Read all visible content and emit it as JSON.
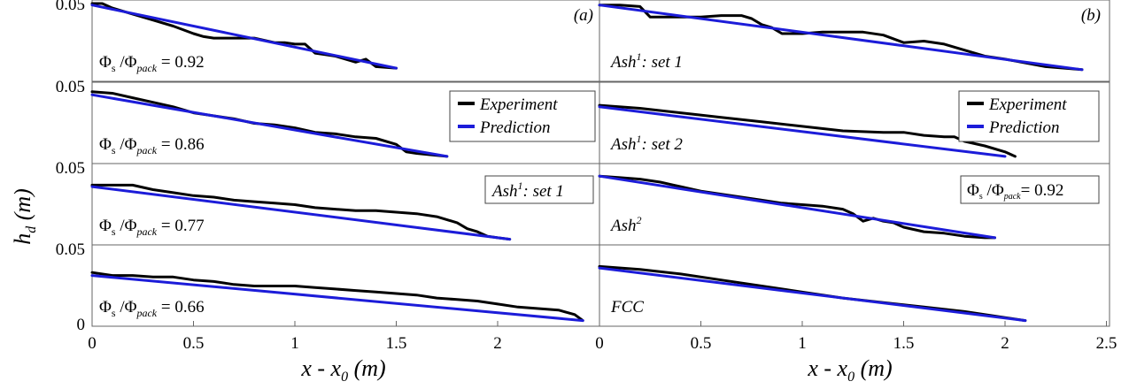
{
  "figure": {
    "ylabel": "h",
    "ylabel_sub": "d",
    "ylabel_unit": " (m)",
    "colors": {
      "experiment": "#000000",
      "prediction": "#1c1cd9",
      "frame": "#666666",
      "text": "#000000"
    }
  },
  "columns": [
    {
      "tag": "(a)",
      "xlabel": "x - x",
      "xlabel_sub": "0",
      "xlabel_unit": " (m)",
      "xlim": [
        0,
        2.5
      ],
      "xticks": [
        0,
        0.5,
        1,
        1.5,
        2
      ],
      "xtick_labels": [
        "0",
        "0.5",
        "1",
        "1.5",
        "2"
      ]
    },
    {
      "tag": "(b)",
      "xlabel": "x - x",
      "xlabel_sub": "0",
      "xlabel_unit": " (m)",
      "xlim": [
        0,
        2.5
      ],
      "xticks": [
        0,
        0.5,
        1,
        1.5,
        2,
        2.5
      ],
      "xtick_labels": [
        "0",
        "0.5",
        "1",
        "1.5",
        "2",
        "2.5"
      ]
    }
  ],
  "legend": {
    "experiment": "Experiment",
    "prediction": "Prediction"
  },
  "boxes": {
    "a_ash": {
      "main": "Ash",
      "sup": "1",
      "rest": ": set 1"
    },
    "b_phi": {
      "phi": "Φ",
      "s": "s",
      "slash": " /Φ",
      "pack": "pack",
      "eq": "= 0.92"
    }
  },
  "chart_data": [
    {
      "type": "line",
      "column": "a",
      "row": 0,
      "ylim": [
        0,
        0.05
      ],
      "yticks": [
        0.05
      ],
      "ytick_labels": [
        "0.05"
      ],
      "label": {
        "kind": "phi",
        "phi": "Φ",
        "s": "s",
        "slash": " /Φ",
        "pack": "pack",
        "eq": " = 0.92"
      },
      "series": [
        {
          "name": "Experiment",
          "x": [
            0,
            0.05,
            0.1,
            0.2,
            0.3,
            0.4,
            0.5,
            0.55,
            0.6,
            0.7,
            0.8,
            0.9,
            0.95,
            1.0,
            1.05,
            1.1,
            1.15,
            1.2,
            1.25,
            1.3,
            1.35,
            1.4,
            1.5
          ],
          "y": [
            0.05,
            0.05,
            0.047,
            0.043,
            0.039,
            0.035,
            0.03,
            0.028,
            0.027,
            0.027,
            0.027,
            0.024,
            0.024,
            0.023,
            0.023,
            0.017,
            0.016,
            0.015,
            0.013,
            0.011,
            0.013,
            0.008,
            0.007
          ]
        },
        {
          "name": "Prediction",
          "x": [
            0,
            1.5
          ],
          "y": [
            0.049,
            0.007
          ]
        }
      ]
    },
    {
      "type": "line",
      "column": "a",
      "row": 1,
      "ylim": [
        0,
        0.05
      ],
      "yticks": [
        0.05
      ],
      "ytick_labels": [
        "0.05"
      ],
      "label": {
        "kind": "phi",
        "phi": "Φ",
        "s": "s",
        "slash": " /Φ",
        "pack": "pack",
        "eq": " = 0.86"
      },
      "series": [
        {
          "name": "Experiment",
          "x": [
            0,
            0.1,
            0.2,
            0.3,
            0.4,
            0.5,
            0.6,
            0.7,
            0.8,
            0.9,
            1.0,
            1.1,
            1.2,
            1.3,
            1.4,
            1.5,
            1.55,
            1.6,
            1.75
          ],
          "y": [
            0.046,
            0.045,
            0.042,
            0.039,
            0.036,
            0.032,
            0.03,
            0.028,
            0.025,
            0.024,
            0.022,
            0.019,
            0.018,
            0.016,
            0.015,
            0.011,
            0.006,
            0.005,
            0.003
          ]
        },
        {
          "name": "Prediction",
          "x": [
            0,
            1.75
          ],
          "y": [
            0.044,
            0.003
          ]
        }
      ]
    },
    {
      "type": "line",
      "column": "a",
      "row": 2,
      "ylim": [
        0,
        0.05
      ],
      "yticks": [
        0.05
      ],
      "ytick_labels": [
        "0.05"
      ],
      "label": {
        "kind": "phi",
        "phi": "Φ",
        "s": "s",
        "slash": " /Φ",
        "pack": "pack",
        "eq": " = 0.77"
      },
      "series": [
        {
          "name": "Experiment",
          "x": [
            0,
            0.2,
            0.3,
            0.4,
            0.5,
            0.6,
            0.7,
            0.8,
            0.9,
            1.0,
            1.1,
            1.2,
            1.3,
            1.4,
            1.5,
            1.6,
            1.7,
            1.8,
            1.85,
            1.9,
            1.95,
            2.0,
            2.06
          ],
          "y": [
            0.038,
            0.038,
            0.035,
            0.033,
            0.031,
            0.03,
            0.028,
            0.027,
            0.026,
            0.025,
            0.023,
            0.022,
            0.021,
            0.021,
            0.02,
            0.019,
            0.017,
            0.013,
            0.009,
            0.007,
            0.004,
            0.003,
            0.002
          ]
        },
        {
          "name": "Prediction",
          "x": [
            0,
            2.06
          ],
          "y": [
            0.037,
            0.002
          ]
        }
      ]
    },
    {
      "type": "line",
      "column": "a",
      "row": 3,
      "ylim": [
        0,
        0.05
      ],
      "yticks": [
        0,
        0.05
      ],
      "ytick_labels": [
        "0",
        "0.05"
      ],
      "label": {
        "kind": "phi",
        "phi": "Φ",
        "s": "s",
        "slash": " /Φ",
        "pack": "pack",
        "eq": " = 0.66"
      },
      "series": [
        {
          "name": "Experiment",
          "x": [
            0,
            0.1,
            0.2,
            0.3,
            0.4,
            0.5,
            0.6,
            0.7,
            0.8,
            0.9,
            1.0,
            1.1,
            1.2,
            1.3,
            1.4,
            1.5,
            1.6,
            1.7,
            1.8,
            1.9,
            2.0,
            2.1,
            2.2,
            2.3,
            2.38,
            2.42
          ],
          "y": [
            0.034,
            0.032,
            0.032,
            0.031,
            0.031,
            0.029,
            0.028,
            0.026,
            0.025,
            0.025,
            0.025,
            0.024,
            0.023,
            0.022,
            0.021,
            0.02,
            0.019,
            0.017,
            0.016,
            0.015,
            0.013,
            0.011,
            0.01,
            0.009,
            0.006,
            0.002
          ]
        },
        {
          "name": "Prediction",
          "x": [
            0,
            2.42
          ],
          "y": [
            0.032,
            0.002
          ]
        }
      ]
    },
    {
      "type": "line",
      "column": "b",
      "row": 0,
      "ylim": [
        0,
        0.05
      ],
      "yticks": [],
      "ytick_labels": [],
      "label": {
        "kind": "ash",
        "main": "Ash",
        "sup": "1",
        "rest": ": set 1"
      },
      "series": [
        {
          "name": "Experiment",
          "x": [
            0,
            0.1,
            0.2,
            0.25,
            0.4,
            0.5,
            0.6,
            0.7,
            0.75,
            0.8,
            0.85,
            0.9,
            1.0,
            1.1,
            1.2,
            1.3,
            1.4,
            1.5,
            1.6,
            1.7,
            1.8,
            1.9,
            2.0,
            2.2,
            2.38
          ],
          "y": [
            0.049,
            0.049,
            0.048,
            0.041,
            0.041,
            0.041,
            0.042,
            0.042,
            0.04,
            0.036,
            0.034,
            0.03,
            0.03,
            0.031,
            0.031,
            0.031,
            0.029,
            0.024,
            0.025,
            0.023,
            0.019,
            0.015,
            0.013,
            0.008,
            0.006
          ]
        },
        {
          "name": "Prediction",
          "x": [
            0,
            2.38
          ],
          "y": [
            0.049,
            0.006
          ]
        }
      ]
    },
    {
      "type": "line",
      "column": "b",
      "row": 1,
      "ylim": [
        0,
        0.05
      ],
      "yticks": [],
      "ytick_labels": [],
      "label": {
        "kind": "ash",
        "main": "Ash",
        "sup": "1",
        "rest": ": set 2"
      },
      "series": [
        {
          "name": "Experiment",
          "x": [
            0,
            0.2,
            0.4,
            0.6,
            0.8,
            1.0,
            1.2,
            1.4,
            1.5,
            1.6,
            1.7,
            1.75,
            1.8,
            1.9,
            2.0,
            2.05
          ],
          "y": [
            0.037,
            0.035,
            0.032,
            0.029,
            0.026,
            0.023,
            0.02,
            0.019,
            0.019,
            0.017,
            0.016,
            0.016,
            0.013,
            0.01,
            0.006,
            0.003
          ]
        },
        {
          "name": "Prediction",
          "x": [
            0,
            2.0
          ],
          "y": [
            0.036,
            0.003
          ]
        }
      ]
    },
    {
      "type": "line",
      "column": "b",
      "row": 2,
      "ylim": [
        0,
        0.05
      ],
      "yticks": [],
      "ytick_labels": [],
      "label": {
        "kind": "ash",
        "main": "Ash",
        "sup": "2",
        "rest": ""
      },
      "series": [
        {
          "name": "Experiment",
          "x": [
            0,
            0.1,
            0.2,
            0.3,
            0.4,
            0.5,
            0.6,
            0.7,
            0.8,
            0.9,
            1.0,
            1.1,
            1.2,
            1.25,
            1.3,
            1.35,
            1.4,
            1.45,
            1.5,
            1.6,
            1.7,
            1.8,
            1.9,
            1.95
          ],
          "y": [
            0.044,
            0.043,
            0.042,
            0.04,
            0.037,
            0.034,
            0.032,
            0.03,
            0.028,
            0.026,
            0.025,
            0.024,
            0.022,
            0.019,
            0.014,
            0.016,
            0.014,
            0.013,
            0.01,
            0.007,
            0.006,
            0.004,
            0.003,
            0.003
          ]
        },
        {
          "name": "Prediction",
          "x": [
            0,
            1.95
          ],
          "y": [
            0.044,
            0.003
          ]
        }
      ]
    },
    {
      "type": "line",
      "column": "b",
      "row": 3,
      "ylim": [
        0,
        0.05
      ],
      "yticks": [],
      "ytick_labels": [],
      "label": {
        "kind": "plain",
        "text": "FCC"
      },
      "series": [
        {
          "name": "Experiment",
          "x": [
            0,
            0.2,
            0.4,
            0.6,
            0.8,
            1.0,
            1.2,
            1.4,
            1.6,
            1.8,
            2.0,
            2.1
          ],
          "y": [
            0.038,
            0.036,
            0.033,
            0.029,
            0.025,
            0.021,
            0.017,
            0.014,
            0.011,
            0.008,
            0.004,
            0.002
          ]
        },
        {
          "name": "Prediction",
          "x": [
            0,
            2.1
          ],
          "y": [
            0.037,
            0.002
          ]
        }
      ]
    }
  ]
}
